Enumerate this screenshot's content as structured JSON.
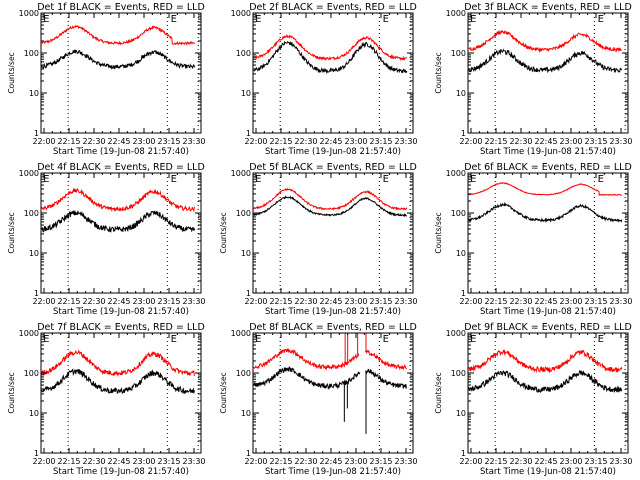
{
  "chart_data": {
    "type": "line",
    "layout": "3x3 grid",
    "x_axis": {
      "label": "Start Time (19-Jun-08 21:57:40)",
      "tick_labels": [
        "22:00",
        "22:15",
        "22:30",
        "22:45",
        "23:00",
        "23:15",
        "23:30"
      ],
      "tick_minutes": [
        120,
        135,
        150,
        165,
        180,
        195,
        210
      ],
      "range_minutes_from_20h": [
        118.2,
        214.2
      ],
      "unit": "HH:MM"
    },
    "y_axis": {
      "label": "Counts/sec",
      "scale": "log",
      "range": [
        1,
        1000
      ],
      "tick_labels": [
        "1",
        "10",
        "100",
        "1000"
      ],
      "tick_values": [
        1,
        10,
        100,
        1000
      ]
    },
    "vertical_markers": {
      "style": "dotted",
      "minutes": [
        134.5,
        194,
        212.5
      ]
    },
    "e_markers": {
      "label": "E",
      "minutes": [
        119.5,
        196
      ]
    },
    "series_colors": {
      "events": "#000000",
      "lld": "#ff0000"
    },
    "legend_text": {
      "events": "BLACK = Events",
      "lld": "RED = LLD"
    },
    "panels": [
      {
        "title": "Det 1f BLACK = Events, RED = LLD",
        "show_ylabel": true,
        "lld": {
          "base": 175,
          "peak1": 460,
          "peak2": 430,
          "noise": 0.03,
          "flat_end": true
        },
        "events": {
          "base": 45,
          "peak1": 110,
          "peak2": 105,
          "noise": 0.05
        }
      },
      {
        "title": "Det 2f BLACK = Events, RED = LLD",
        "show_ylabel": false,
        "lld": {
          "base": 72,
          "peak1": 260,
          "peak2": 240,
          "noise": 0.03
        },
        "events": {
          "base": 35,
          "peak1": 180,
          "peak2": 165,
          "noise": 0.05
        }
      },
      {
        "title": "Det 3f BLACK = Events, RED = LLD",
        "show_ylabel": true,
        "lld": {
          "base": 120,
          "peak1": 330,
          "peak2": 290,
          "noise": 0.04
        },
        "events": {
          "base": 37,
          "peak1": 110,
          "peak2": 100,
          "noise": 0.06
        }
      },
      {
        "title": "Det 4f BLACK = Events, RED = LLD",
        "show_ylabel": true,
        "lld": {
          "base": 125,
          "peak1": 360,
          "peak2": 340,
          "noise": 0.05
        },
        "events": {
          "base": 38,
          "peak1": 100,
          "peak2": 100,
          "noise": 0.07
        }
      },
      {
        "title": "Det 5f BLACK = Events, RED = LLD",
        "show_ylabel": true,
        "lld": {
          "base": 125,
          "peak1": 390,
          "peak2": 340,
          "noise": 0.02
        },
        "events": {
          "base": 88,
          "peak1": 250,
          "peak2": 230,
          "noise": 0.02
        }
      },
      {
        "title": "Det 6f BLACK = Events, RED = LLD",
        "show_ylabel": true,
        "lld": {
          "base": 285,
          "peak1": 560,
          "peak2": 520,
          "noise": 0.01,
          "flat_end": true
        },
        "events": {
          "base": 65,
          "peak1": 160,
          "peak2": 150,
          "noise": 0.03
        }
      },
      {
        "title": "Det 7f BLACK = Events, RED = LLD",
        "show_ylabel": true,
        "lld": {
          "base": 98,
          "peak1": 330,
          "peak2": 300,
          "noise": 0.06
        },
        "events": {
          "base": 35,
          "peak1": 110,
          "peak2": 100,
          "noise": 0.07
        }
      },
      {
        "title": "Det 8f BLACK = Events, RED = LLD",
        "show_ylabel": true,
        "lld": {
          "base": 140,
          "peak1": 370,
          "peak2": 330,
          "noise": 0.05,
          "spikes": [
            {
              "minute": 173.5,
              "value": 1000
            },
            {
              "minute": 175,
              "value": 1000
            },
            {
              "minute": 181,
              "value": 1000
            },
            {
              "minute": 186,
              "value": 1000
            }
          ],
          "gap_minutes": [
            182,
            185.5
          ]
        },
        "events": {
          "base": 47,
          "peak1": 125,
          "peak2": 115,
          "noise": 0.06,
          "dips": [
            {
              "minute": 173,
              "value": 6
            },
            {
              "minute": 174.8,
              "value": 13
            },
            {
              "minute": 186,
              "value": 3
            }
          ],
          "gap_minutes": [
            182.5,
            185.5
          ]
        }
      },
      {
        "title": "Det 9f BLACK = Events, RED = LLD",
        "show_ylabel": true,
        "lld": {
          "base": 120,
          "peak1": 340,
          "peak2": 330,
          "noise": 0.06
        },
        "events": {
          "base": 38,
          "peak1": 100,
          "peak2": 100,
          "noise": 0.07
        }
      }
    ]
  }
}
